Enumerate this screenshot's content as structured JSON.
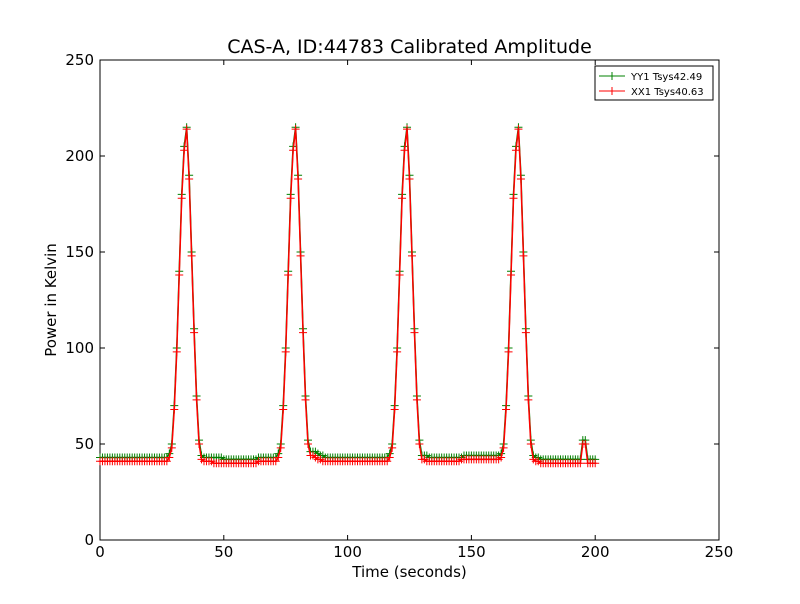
{
  "chart_data": {
    "type": "line",
    "title": "CAS-A, ID:44783 Calibrated Amplitude",
    "xlabel": "Time (seconds)",
    "ylabel": "Power in Kelvin",
    "xlim": [
      0,
      250
    ],
    "ylim": [
      0,
      250
    ],
    "xticks": [
      0,
      50,
      100,
      150,
      200,
      250
    ],
    "yticks": [
      0,
      50,
      100,
      150,
      200,
      250
    ],
    "grid": false,
    "legend_position": "top-right",
    "series": [
      {
        "name": "YY1 Tsys42.49",
        "color": "#008000",
        "marker": "plus",
        "x": [
          0,
          1,
          2,
          3,
          4,
          5,
          6,
          7,
          8,
          9,
          10,
          11,
          12,
          13,
          14,
          15,
          16,
          17,
          18,
          19,
          20,
          21,
          22,
          23,
          24,
          25,
          26,
          27,
          28,
          29,
          30,
          31,
          32,
          33,
          34,
          35,
          36,
          37,
          38,
          39,
          40,
          41,
          42,
          43,
          44,
          45,
          46,
          47,
          48,
          49,
          50,
          51,
          52,
          53,
          54,
          55,
          56,
          57,
          58,
          59,
          60,
          61,
          62,
          63,
          64,
          65,
          66,
          67,
          68,
          69,
          70,
          71,
          72,
          73,
          74,
          75,
          76,
          77,
          78,
          79,
          80,
          81,
          82,
          83,
          84,
          85,
          86,
          87,
          88,
          89,
          90,
          91,
          92,
          93,
          94,
          95,
          96,
          97,
          98,
          99,
          100,
          101,
          102,
          103,
          104,
          105,
          106,
          107,
          108,
          109,
          110,
          111,
          112,
          113,
          114,
          115,
          116,
          117,
          118,
          119,
          120,
          121,
          122,
          123,
          124,
          125,
          126,
          127,
          128,
          129,
          130,
          131,
          132,
          133,
          134,
          135,
          136,
          137,
          138,
          139,
          140,
          141,
          142,
          143,
          144,
          145,
          146,
          147,
          148,
          149,
          150,
          151,
          152,
          153,
          154,
          155,
          156,
          157,
          158,
          159,
          160,
          161,
          162,
          163,
          164,
          165,
          166,
          167,
          168,
          169,
          170,
          171,
          172,
          173,
          174,
          175,
          176,
          177,
          178,
          179,
          180,
          181,
          182,
          183,
          184,
          185,
          186,
          187,
          188,
          189,
          190,
          191,
          192,
          193,
          194,
          195,
          196,
          197,
          198,
          199,
          200
        ],
        "y": [
          43,
          43,
          43,
          43,
          43,
          43,
          43,
          43,
          43,
          43,
          43,
          43,
          43,
          43,
          43,
          43,
          43,
          43,
          43,
          43,
          43,
          43,
          43,
          43,
          43,
          43,
          43,
          43,
          45,
          50,
          70,
          100,
          140,
          180,
          205,
          215,
          190,
          150,
          110,
          75,
          52,
          44,
          43,
          43,
          43,
          43,
          43,
          43,
          43,
          43,
          42,
          42,
          42,
          42,
          42,
          42,
          42,
          42,
          42,
          42,
          42,
          42,
          42,
          42,
          43,
          43,
          43,
          43,
          43,
          43,
          43,
          43,
          45,
          50,
          70,
          100,
          140,
          180,
          205,
          215,
          190,
          150,
          110,
          75,
          52,
          46,
          46,
          46,
          45,
          44,
          44,
          43,
          43,
          43,
          43,
          43,
          43,
          43,
          43,
          43,
          43,
          43,
          43,
          43,
          43,
          43,
          43,
          43,
          43,
          43,
          43,
          43,
          43,
          43,
          43,
          43,
          43,
          45,
          50,
          70,
          100,
          140,
          180,
          205,
          215,
          190,
          150,
          110,
          75,
          52,
          44,
          44,
          44,
          43,
          43,
          43,
          43,
          43,
          43,
          43,
          43,
          43,
          43,
          43,
          43,
          43,
          43,
          44,
          44,
          44,
          44,
          44,
          44,
          44,
          44,
          44,
          44,
          44,
          44,
          44,
          44,
          44,
          45,
          50,
          70,
          100,
          140,
          180,
          205,
          215,
          190,
          150,
          110,
          75,
          52,
          44,
          43,
          43,
          42,
          42,
          42,
          42,
          42,
          42,
          42,
          42,
          42,
          42,
          42,
          42,
          42,
          42,
          42,
          42,
          42,
          52,
          52,
          42,
          42,
          42,
          42
        ]
      },
      {
        "name": "XX1 Tsys40.63",
        "color": "#ff0000",
        "marker": "plus",
        "x": [
          0,
          1,
          2,
          3,
          4,
          5,
          6,
          7,
          8,
          9,
          10,
          11,
          12,
          13,
          14,
          15,
          16,
          17,
          18,
          19,
          20,
          21,
          22,
          23,
          24,
          25,
          26,
          27,
          28,
          29,
          30,
          31,
          32,
          33,
          34,
          35,
          36,
          37,
          38,
          39,
          40,
          41,
          42,
          43,
          44,
          45,
          46,
          47,
          48,
          49,
          50,
          51,
          52,
          53,
          54,
          55,
          56,
          57,
          58,
          59,
          60,
          61,
          62,
          63,
          64,
          65,
          66,
          67,
          68,
          69,
          70,
          71,
          72,
          73,
          74,
          75,
          76,
          77,
          78,
          79,
          80,
          81,
          82,
          83,
          84,
          85,
          86,
          87,
          88,
          89,
          90,
          91,
          92,
          93,
          94,
          95,
          96,
          97,
          98,
          99,
          100,
          101,
          102,
          103,
          104,
          105,
          106,
          107,
          108,
          109,
          110,
          111,
          112,
          113,
          114,
          115,
          116,
          117,
          118,
          119,
          120,
          121,
          122,
          123,
          124,
          125,
          126,
          127,
          128,
          129,
          130,
          131,
          132,
          133,
          134,
          135,
          136,
          137,
          138,
          139,
          140,
          141,
          142,
          143,
          144,
          145,
          146,
          147,
          148,
          149,
          150,
          151,
          152,
          153,
          154,
          155,
          156,
          157,
          158,
          159,
          160,
          161,
          162,
          163,
          164,
          165,
          166,
          167,
          168,
          169,
          170,
          171,
          172,
          173,
          174,
          175,
          176,
          177,
          178,
          179,
          180,
          181,
          182,
          183,
          184,
          185,
          186,
          187,
          188,
          189,
          190,
          191,
          192,
          193,
          194,
          195,
          196,
          197,
          198,
          199,
          200
        ],
        "y": [
          41,
          41,
          41,
          41,
          41,
          41,
          41,
          41,
          41,
          41,
          41,
          41,
          41,
          41,
          41,
          41,
          41,
          41,
          41,
          41,
          41,
          41,
          41,
          41,
          41,
          41,
          41,
          41,
          43,
          48,
          68,
          98,
          138,
          178,
          203,
          214,
          188,
          148,
          108,
          73,
          50,
          42,
          41,
          41,
          41,
          41,
          40,
          40,
          40,
          40,
          40,
          40,
          40,
          40,
          40,
          40,
          40,
          40,
          40,
          40,
          40,
          40,
          40,
          40,
          41,
          41,
          41,
          41,
          41,
          41,
          41,
          41,
          43,
          48,
          68,
          98,
          138,
          178,
          203,
          214,
          188,
          148,
          108,
          73,
          50,
          44,
          44,
          43,
          42,
          42,
          41,
          41,
          41,
          41,
          41,
          41,
          41,
          41,
          41,
          41,
          41,
          41,
          41,
          41,
          41,
          41,
          41,
          41,
          41,
          41,
          41,
          41,
          41,
          41,
          41,
          41,
          41,
          43,
          48,
          68,
          98,
          138,
          178,
          203,
          214,
          188,
          148,
          108,
          73,
          50,
          42,
          42,
          41,
          41,
          41,
          41,
          41,
          41,
          41,
          41,
          41,
          41,
          41,
          41,
          41,
          41,
          42,
          42,
          42,
          42,
          42,
          42,
          42,
          42,
          42,
          42,
          42,
          42,
          42,
          42,
          42,
          42,
          43,
          48,
          68,
          98,
          138,
          178,
          203,
          214,
          188,
          148,
          108,
          73,
          50,
          42,
          41,
          41,
          40,
          40,
          40,
          40,
          40,
          40,
          40,
          40,
          40,
          40,
          40,
          40,
          40,
          40,
          40,
          40,
          40,
          50,
          50,
          40,
          40,
          40,
          40
        ]
      }
    ]
  }
}
